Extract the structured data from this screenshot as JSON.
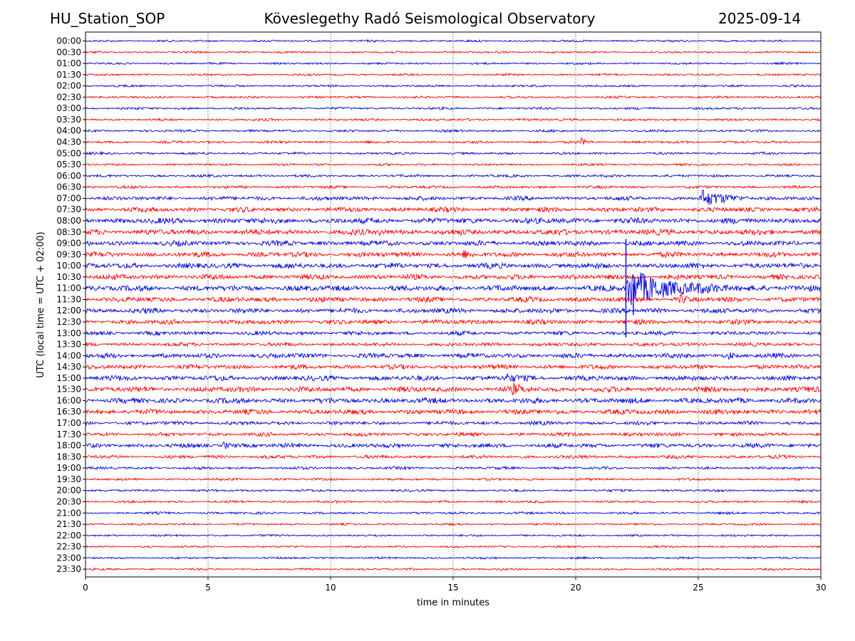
{
  "header": {
    "station": "HU_Station_SOP",
    "observatory": "Köveslegethy Radó Seismological Observatory",
    "date": "2025-09-14"
  },
  "chart_data": {
    "type": "line",
    "title": "Köveslegethy Radó Seismological Observatory",
    "xlabel": "time in minutes",
    "ylabel": "UTC (local time = UTC + 02:00)",
    "xlim": [
      0,
      30
    ],
    "x_ticks": [
      0,
      5,
      10,
      15,
      20,
      25,
      30
    ],
    "x_tick_labels": [
      "0",
      "5",
      "10",
      "15",
      "20",
      "25",
      "30"
    ],
    "grid": "vertical dotted at x ticks",
    "series_colors": [
      "#0000dd",
      "#ff0000"
    ],
    "colors_alternate": true,
    "rows": [
      {
        "label": "00:00",
        "amp": 1.2
      },
      {
        "label": "00:30",
        "amp": 1.2
      },
      {
        "label": "01:00",
        "amp": 1.2
      },
      {
        "label": "01:30",
        "amp": 1.2
      },
      {
        "label": "02:00",
        "amp": 1.3
      },
      {
        "label": "02:30",
        "amp": 1.3
      },
      {
        "label": "03:00",
        "amp": 1.4
      },
      {
        "label": "03:30",
        "amp": 1.4
      },
      {
        "label": "04:00",
        "amp": 1.4
      },
      {
        "label": "04:30",
        "amp": 1.5
      },
      {
        "label": "05:00",
        "amp": 1.4
      },
      {
        "label": "05:30",
        "amp": 1.3
      },
      {
        "label": "06:00",
        "amp": 1.5
      },
      {
        "label": "06:30",
        "amp": 1.6
      },
      {
        "label": "07:00",
        "amp": 2.4
      },
      {
        "label": "07:30",
        "amp": 2.8
      },
      {
        "label": "08:00",
        "amp": 3.4
      },
      {
        "label": "08:30",
        "amp": 3.4
      },
      {
        "label": "09:00",
        "amp": 3.0
      },
      {
        "label": "09:30",
        "amp": 3.0
      },
      {
        "label": "10:00",
        "amp": 3.2
      },
      {
        "label": "10:30",
        "amp": 3.0
      },
      {
        "label": "11:00",
        "amp": 3.4
      },
      {
        "label": "11:30",
        "amp": 3.0
      },
      {
        "label": "12:00",
        "amp": 3.0
      },
      {
        "label": "12:30",
        "amp": 2.8
      },
      {
        "label": "13:00",
        "amp": 2.4
      },
      {
        "label": "13:30",
        "amp": 2.2
      },
      {
        "label": "14:00",
        "amp": 2.8
      },
      {
        "label": "14:30",
        "amp": 2.6
      },
      {
        "label": "15:00",
        "amp": 3.0
      },
      {
        "label": "15:30",
        "amp": 3.2
      },
      {
        "label": "16:00",
        "amp": 3.2
      },
      {
        "label": "16:30",
        "amp": 3.0
      },
      {
        "label": "17:00",
        "amp": 2.2
      },
      {
        "label": "17:30",
        "amp": 2.2
      },
      {
        "label": "18:00",
        "amp": 2.6
      },
      {
        "label": "18:30",
        "amp": 2.0
      },
      {
        "label": "19:00",
        "amp": 1.6
      },
      {
        "label": "19:30",
        "amp": 1.4
      },
      {
        "label": "20:00",
        "amp": 1.4
      },
      {
        "label": "20:30",
        "amp": 1.4
      },
      {
        "label": "21:00",
        "amp": 1.4
      },
      {
        "label": "21:30",
        "amp": 1.2
      },
      {
        "label": "22:00",
        "amp": 1.2
      },
      {
        "label": "22:30",
        "amp": 1.2
      },
      {
        "label": "23:00",
        "amp": 1.2
      },
      {
        "label": "23:30",
        "amp": 1.2
      }
    ],
    "events": [
      {
        "row": "04:30",
        "start_min": 20.2,
        "duration_min": 0.8,
        "peak": 5
      },
      {
        "row": "07:00",
        "start_min": 25.0,
        "duration_min": 3.0,
        "peak": 14
      },
      {
        "row": "08:30",
        "start_min": 12.0,
        "duration_min": 0.4,
        "peak": 7
      },
      {
        "row": "09:30",
        "start_min": 15.4,
        "duration_min": 0.5,
        "peak": 6
      },
      {
        "row": "11:00",
        "start_min": 22.0,
        "duration_min": 6.0,
        "peak": 30
      },
      {
        "row": "11:30",
        "start_min": 24.2,
        "duration_min": 1.0,
        "peak": 6
      },
      {
        "row": "14:00",
        "start_min": 26.2,
        "duration_min": 0.5,
        "peak": 7
      },
      {
        "row": "15:00",
        "start_min": 17.0,
        "duration_min": 2.0,
        "peak": 6
      },
      {
        "row": "15:30",
        "start_min": 17.4,
        "duration_min": 1.6,
        "peak": 7
      },
      {
        "row": "15:30",
        "start_min": 26.8,
        "duration_min": 0.6,
        "peak": 6
      },
      {
        "row": "18:00",
        "start_min": 5.6,
        "duration_min": 0.8,
        "peak": 6
      }
    ],
    "spikes": [
      {
        "x_min": 22.05,
        "from_row": "09:00",
        "to_row": "13:00"
      },
      {
        "x_min": 22.35,
        "from_row": "11:00",
        "to_row": "12:00"
      }
    ]
  }
}
